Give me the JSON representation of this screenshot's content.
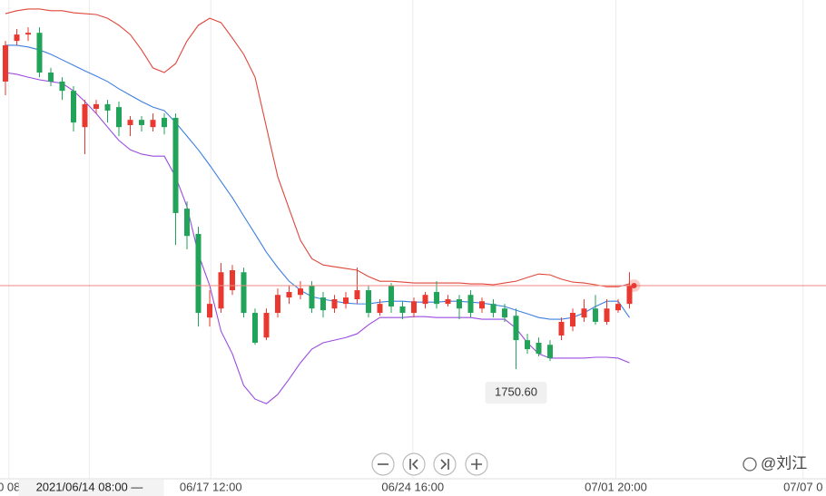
{
  "chart_data": {
    "type": "candlestick",
    "rise_color": "#e8382f",
    "fall_color": "#21a35a",
    "open": [
      1849.7,
      1863.7,
      1865.9,
      1866.5,
      1852.8,
      1849.7,
      1846.5,
      1834.0,
      1840.3,
      1841.9,
      1840.9,
      1834.7,
      1836.5,
      1834.0,
      1837.2,
      1837.2,
      1805.9,
      1797.2,
      1768.4,
      1771.5,
      1777.8,
      1784.0,
      1770.0,
      1761.5,
      1770.0,
      1775.3,
      1776.2,
      1779.4,
      1775.3,
      1771.5,
      1773.1,
      1774.7,
      1777.8,
      1770.0,
      1779.4,
      1772.2,
      1770.0,
      1773.1,
      1777.2,
      1773.1,
      1774.7,
      1776.2,
      1771.5,
      1773.1,
      1771.5,
      1769.0,
      1760.6,
      1759.7,
      1759.0,
      1762.2,
      1765.3,
      1768.4,
      1771.5,
      1766.9,
      1770.9,
      1773.1
    ],
    "high": [
      1863.7,
      1867.8,
      1868.4,
      1868.4,
      1854.4,
      1851.2,
      1848.1,
      1843.4,
      1843.4,
      1843.4,
      1842.8,
      1837.8,
      1837.8,
      1838.7,
      1838.7,
      1838.7,
      1808.4,
      1799.7,
      1777.8,
      1787.2,
      1786.5,
      1785.6,
      1771.5,
      1771.5,
      1778.4,
      1779.4,
      1780.9,
      1780.9,
      1777.2,
      1776.2,
      1777.2,
      1785.6,
      1779.4,
      1774.7,
      1780.3,
      1774.0,
      1775.3,
      1777.2,
      1780.9,
      1776.2,
      1776.2,
      1777.8,
      1775.3,
      1774.7,
      1773.1,
      1771.5,
      1762.8,
      1761.5,
      1760.6,
      1768.4,
      1771.5,
      1774.7,
      1776.2,
      1774.7,
      1774.7,
      1784.0
    ],
    "low": [
      1845.0,
      1862.2,
      1863.7,
      1851.2,
      1848.1,
      1843.4,
      1832.5,
      1824.7,
      1838.7,
      1835.6,
      1830.9,
      1830.9,
      1832.5,
      1832.5,
      1831.5,
      1793.4,
      1791.9,
      1765.3,
      1765.3,
      1770.0,
      1776.2,
      1768.4,
      1759.0,
      1760.6,
      1768.4,
      1773.1,
      1774.7,
      1770.0,
      1768.4,
      1770.0,
      1771.5,
      1773.1,
      1768.4,
      1769.0,
      1770.0,
      1767.8,
      1768.4,
      1771.5,
      1771.5,
      1772.2,
      1767.8,
      1768.4,
      1770.0,
      1768.4,
      1766.9,
      1750.6,
      1755.9,
      1755.0,
      1753.4,
      1760.6,
      1763.7,
      1766.9,
      1765.9,
      1765.9,
      1770.0,
      1771.5
    ],
    "close": [
      1862.2,
      1865.9,
      1866.5,
      1852.8,
      1849.7,
      1846.5,
      1835.6,
      1841.9,
      1841.9,
      1839.7,
      1834.0,
      1836.5,
      1834.7,
      1836.5,
      1834.0,
      1804.4,
      1796.5,
      1770.0,
      1773.1,
      1784.0,
      1784.7,
      1770.0,
      1759.7,
      1770.0,
      1776.2,
      1777.2,
      1778.4,
      1771.5,
      1770.9,
      1774.7,
      1775.3,
      1777.8,
      1770.0,
      1773.1,
      1772.2,
      1770.0,
      1774.0,
      1776.2,
      1773.1,
      1774.7,
      1771.5,
      1770.0,
      1774.0,
      1770.0,
      1768.4,
      1760.6,
      1757.5,
      1755.9,
      1754.4,
      1766.9,
      1770.0,
      1771.5,
      1766.9,
      1771.5,
      1773.1,
      1779.4
    ],
    "bands": [
      {
        "color": "#e0463a",
        "values": [
          1873.1,
          1874.1,
          1874.7,
          1874.7,
          1874.1,
          1874.1,
          1873.4,
          1873.1,
          1872.8,
          1871.5,
          1869.1,
          1865.9,
          1860.6,
          1854.4,
          1852.8,
          1855.9,
          1863.7,
          1869.1,
          1871.5,
          1870.0,
          1864.7,
          1859.1,
          1851.2,
          1834.0,
          1816.9,
          1805.9,
          1795.0,
          1788.7,
          1786.5,
          1785.9,
          1785.3,
          1784.7,
          1782.5,
          1780.9,
          1780.9,
          1780.6,
          1780.3,
          1780.3,
          1780.3,
          1780.3,
          1780.3,
          1780.0,
          1780.0,
          1779.7,
          1780.3,
          1780.9,
          1782.2,
          1783.4,
          1783.1,
          1781.6,
          1780.6,
          1780.3,
          1779.7,
          1779.0,
          1779.0,
          1780.0
        ]
      },
      {
        "color": "#3d7fe0",
        "values": [
          1862.2,
          1862.2,
          1861.6,
          1860.6,
          1859.1,
          1857.2,
          1855.3,
          1853.4,
          1851.6,
          1849.7,
          1847.2,
          1845.0,
          1842.8,
          1840.9,
          1839.7,
          1835.6,
          1830.9,
          1826.2,
          1820.9,
          1815.3,
          1809.7,
          1803.4,
          1797.2,
          1790.9,
          1785.6,
          1780.9,
          1777.8,
          1775.6,
          1774.7,
          1774.0,
          1773.4,
          1773.1,
          1773.1,
          1773.7,
          1774.0,
          1774.0,
          1773.7,
          1773.7,
          1773.7,
          1774.0,
          1774.0,
          1773.7,
          1773.4,
          1772.8,
          1772.2,
          1770.9,
          1769.7,
          1768.4,
          1767.8,
          1767.8,
          1768.4,
          1770.0,
          1772.2,
          1774.0,
          1774.0,
          1768.4
        ]
      },
      {
        "color": "#9b4be0",
        "values": [
          1852.8,
          1852.2,
          1851.2,
          1850.3,
          1849.7,
          1849.1,
          1846.5,
          1842.8,
          1838.7,
          1834.0,
          1829.4,
          1826.2,
          1824.7,
          1824.0,
          1824.0,
          1816.9,
          1806.6,
          1790.3,
          1779.4,
          1763.7,
          1755.9,
          1745.0,
          1740.3,
          1738.7,
          1741.9,
          1747.2,
          1752.8,
          1757.5,
          1759.7,
          1760.6,
          1761.5,
          1762.8,
          1765.9,
          1768.4,
          1768.4,
          1768.4,
          1768.7,
          1768.7,
          1768.4,
          1768.4,
          1768.4,
          1768.4,
          1767.8,
          1767.8,
          1767.8,
          1764.7,
          1759.7,
          1755.9,
          1754.4,
          1754.4,
          1754.4,
          1754.4,
          1754.7,
          1754.7,
          1754.4,
          1752.8
        ]
      }
    ],
    "ylim": [
      1711.9,
      1877.8
    ],
    "xlim": [
      -0.5,
      72.3
    ],
    "xticks": [
      {
        "value": 0.3,
        "label": "0 08"
      },
      {
        "value": 7.4,
        "label": "2021/06/14 08:00 —"
      },
      {
        "value": 18.1,
        "label": "06/17 12:00"
      },
      {
        "value": 35.9,
        "label": "06/24 16:00"
      },
      {
        "value": 53.8,
        "label": "07/01 20:00"
      },
      {
        "value": 70.3,
        "label": "07/07 0"
      }
    ],
    "min_label": {
      "value": 1750.6,
      "label": "1750.60"
    },
    "last_price_line": true,
    "grid": true,
    "watermark": "@刘江"
  }
}
